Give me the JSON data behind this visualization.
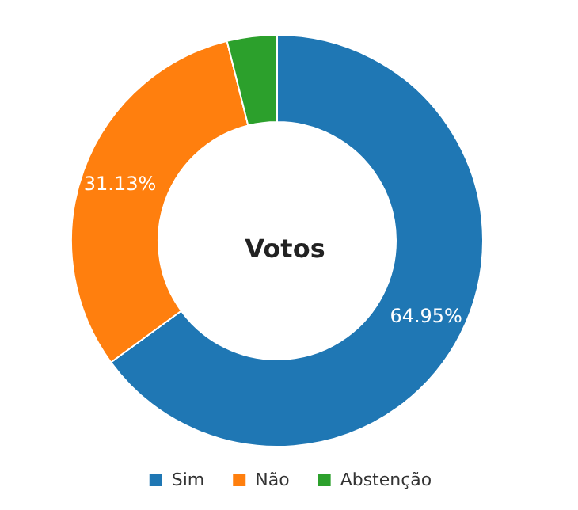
{
  "chart_data": {
    "type": "donut",
    "title": "Votos",
    "categories": [
      "Sim",
      "Não",
      "Abstenção"
    ],
    "values": [
      64.95,
      31.13,
      3.92
    ],
    "colors": [
      "#1f77b4",
      "#ff7f0e",
      "#2ca02c"
    ],
    "value_labels": [
      "64.95%",
      "31.13%",
      null
    ],
    "legend": "bottom"
  }
}
